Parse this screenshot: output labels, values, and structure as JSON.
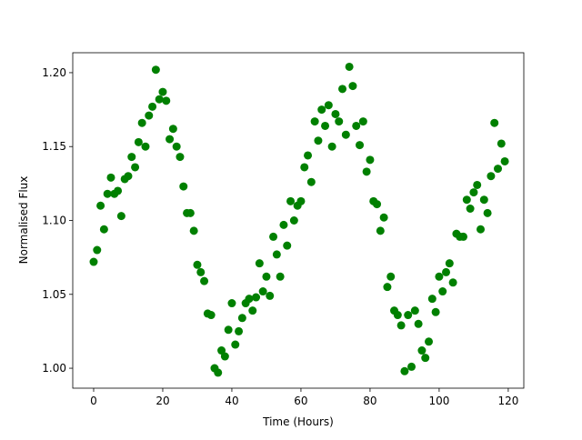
{
  "chart_data": {
    "type": "scatter",
    "xlabel": "Time (Hours)",
    "ylabel": "Normalised Flux",
    "color": "#008000",
    "xlim": [
      -6.05,
      124.5
    ],
    "ylim": [
      0.9865,
      1.2135
    ],
    "xticks": [
      0,
      20,
      40,
      60,
      80,
      100,
      120
    ],
    "yticks": [
      {
        "value": 1,
        "label": "1.00"
      },
      1.05,
      {
        "value": 1.1,
        "label": "1.10"
      },
      1.15,
      {
        "value": 1.2,
        "label": "1.20"
      }
    ],
    "x": [
      0,
      1,
      2,
      3,
      4,
      5,
      6,
      7,
      8,
      9,
      10,
      11,
      12,
      13,
      14,
      15,
      16,
      17,
      18,
      19,
      20,
      21,
      22,
      23,
      24,
      25,
      26,
      27,
      28,
      29,
      30,
      31,
      32,
      33,
      34,
      35,
      36,
      37,
      38,
      39,
      40,
      41,
      42,
      43,
      44,
      45,
      46,
      47,
      48,
      49,
      50,
      51,
      52,
      53,
      54,
      55,
      56,
      57,
      58,
      59,
      60,
      61,
      62,
      63,
      64,
      65,
      66,
      67,
      68,
      69,
      70,
      71,
      72,
      73,
      74,
      75,
      76,
      77,
      78,
      79,
      80,
      81,
      82,
      83,
      84,
      85,
      86,
      87,
      88,
      89,
      90,
      91,
      92,
      93,
      94,
      95,
      96,
      97,
      98,
      99,
      100,
      101,
      102,
      103,
      104,
      105,
      106,
      107,
      108,
      109,
      110,
      111,
      112,
      113,
      114,
      115,
      116,
      117,
      118,
      119
    ],
    "values": [
      1.072,
      1.08,
      1.11,
      1.094,
      1.118,
      1.129,
      1.118,
      1.12,
      1.103,
      1.128,
      1.13,
      1.143,
      1.136,
      1.153,
      1.166,
      1.15,
      1.171,
      1.177,
      1.202,
      1.182,
      1.187,
      1.181,
      1.155,
      1.162,
      1.15,
      1.143,
      1.123,
      1.105,
      1.105,
      1.093,
      1.07,
      1.065,
      1.059,
      1.037,
      1.036,
      1.0,
      0.997,
      1.012,
      1.008,
      1.026,
      1.044,
      1.016,
      1.025,
      1.034,
      1.044,
      1.047,
      1.039,
      1.048,
      1.071,
      1.052,
      1.062,
      1.049,
      1.089,
      1.077,
      1.062,
      1.097,
      1.083,
      1.113,
      1.1,
      1.11,
      1.113,
      1.136,
      1.144,
      1.126,
      1.167,
      1.154,
      1.175,
      1.164,
      1.178,
      1.15,
      1.172,
      1.167,
      1.189,
      1.158,
      1.204,
      1.191,
      1.164,
      1.151,
      1.167,
      1.133,
      1.141,
      1.113,
      1.111,
      1.093,
      1.102,
      1.055,
      1.062,
      1.039,
      1.036,
      1.029,
      0.998,
      1.036,
      1.001,
      1.039,
      1.03,
      1.012,
      1.007,
      1.018,
      1.047,
      1.038,
      1.062,
      1.052,
      1.065,
      1.071,
      1.058,
      1.091,
      1.089,
      1.089,
      1.114,
      1.108,
      1.119,
      1.124,
      1.094,
      1.114,
      1.105,
      1.13,
      1.166,
      1.135,
      1.152,
      1.14
    ]
  }
}
